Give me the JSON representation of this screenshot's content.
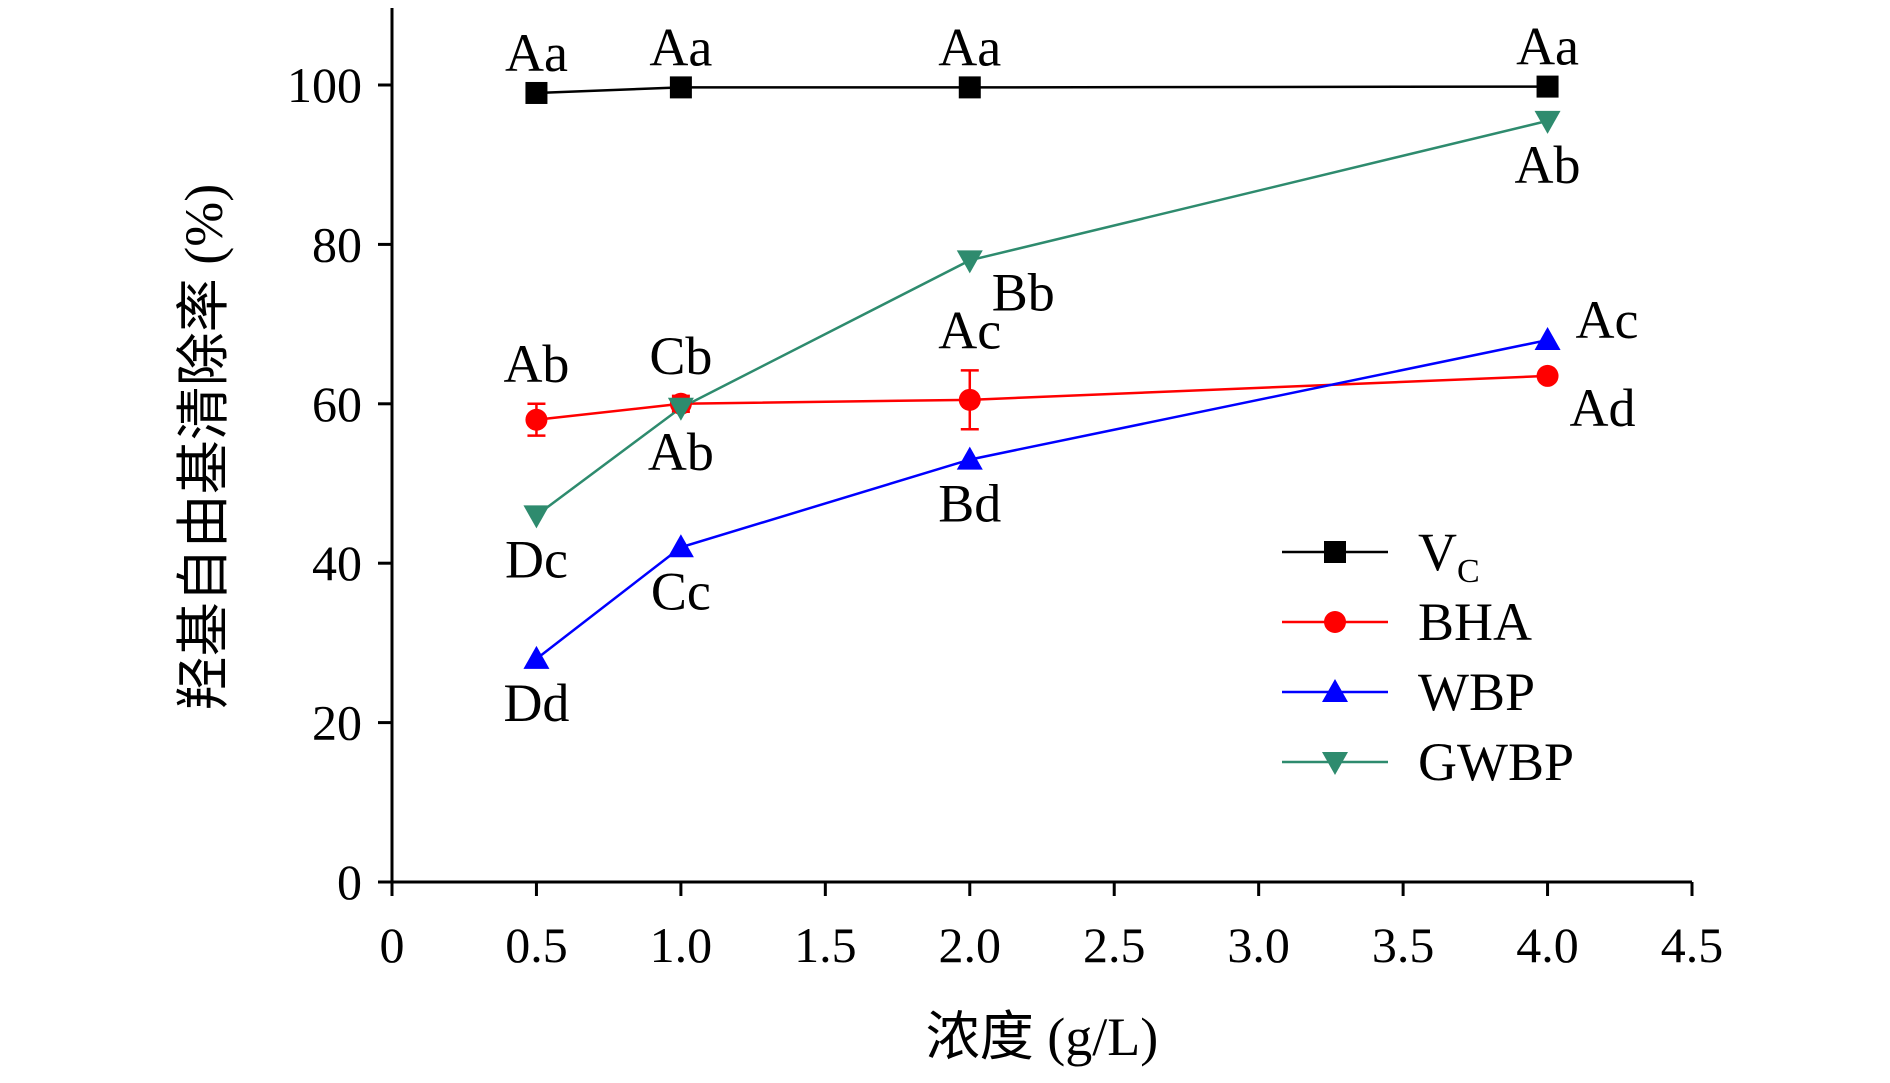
{
  "chart_data": {
    "type": "line",
    "xlabel": "浓度 (g/L)",
    "ylabel": "羟基自由基清除率 (%)",
    "xlim": [
      0,
      4.5
    ],
    "ylim": [
      0,
      100
    ],
    "x_ticks": [
      "0",
      "0.5",
      "1.0",
      "1.5",
      "2.0",
      "2.5",
      "3.0",
      "3.5",
      "4.0",
      "4.5"
    ],
    "y_ticks": [
      "0",
      "20",
      "40",
      "60",
      "80",
      "100"
    ],
    "x": [
      0.5,
      1.0,
      2.0,
      4.0
    ],
    "grid": false,
    "legend_position": "bottom-right",
    "series": [
      {
        "name": "Vc",
        "name_main": "V",
        "name_sub": "C",
        "color": "#000000",
        "marker": "square",
        "values": [
          99,
          99.7,
          99.7,
          99.8
        ],
        "errors": [
          0,
          0,
          0,
          0
        ],
        "labels": [
          "Aa",
          "Aa",
          "Aa",
          "Aa"
        ],
        "label_side": [
          "above",
          "above",
          "above",
          "above"
        ]
      },
      {
        "name": "BHA",
        "color": "#ff0000",
        "marker": "circle",
        "values": [
          58,
          60,
          60.5,
          63.5
        ],
        "errors": [
          2,
          1,
          3.7,
          0.5
        ],
        "labels": [
          "Ab",
          "Cb",
          "Ac",
          "Ad"
        ],
        "label_side": [
          "above",
          "above",
          "above",
          "right-below"
        ]
      },
      {
        "name": "WBP",
        "color": "#0000ff",
        "marker": "triangle-up",
        "values": [
          28,
          42,
          53,
          68
        ],
        "errors": [
          0,
          0,
          0,
          0
        ],
        "labels": [
          "Dd",
          "Cc",
          "Bd",
          "Ac"
        ],
        "label_side": [
          "below",
          "below",
          "below",
          "right-above"
        ]
      },
      {
        "name": "GWBP",
        "color": "#2e8b6e",
        "marker": "triangle-down",
        "values": [
          46,
          59.5,
          78,
          95.5
        ],
        "errors": [
          0,
          0,
          0,
          0
        ],
        "labels": [
          "Dc",
          "Ab",
          "Bb",
          "Ab"
        ],
        "label_side": [
          "below",
          "below",
          "right-below",
          "below"
        ]
      }
    ]
  }
}
